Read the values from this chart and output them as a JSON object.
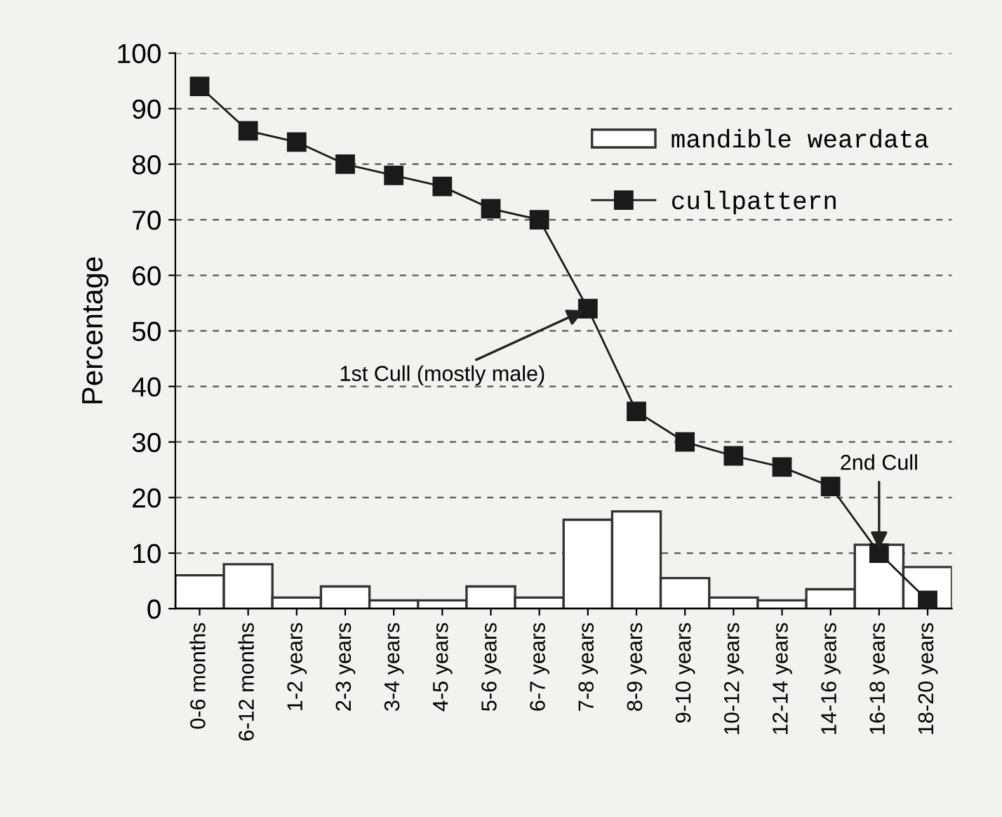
{
  "chart_data": {
    "type": "bar",
    "ylabel": "Percentage",
    "categories": [
      "0-6 months",
      "6-12 months",
      "1-2 years",
      "2-3 years",
      "3-4 years",
      "4-5 years",
      "5-6 years",
      "6-7 years",
      "7-8 years",
      "8-9 years",
      "9-10 years",
      "10-12 years",
      "12-14 years",
      "14-16 years",
      "16-18 years",
      "18-20 years"
    ],
    "series": [
      {
        "name": "mandible weardata",
        "color": "#ffffff",
        "values": [
          6,
          8,
          2,
          4,
          1.5,
          1.5,
          4,
          2,
          16,
          17.5,
          5.5,
          2,
          1.5,
          3.5,
          11.5,
          7.5
        ]
      },
      {
        "name": "cullpattern",
        "type": "line",
        "color": "#1a1a1a",
        "marker": "square",
        "values": [
          94,
          86,
          84,
          80,
          78,
          76,
          72,
          70,
          54,
          35.5,
          30,
          27.5,
          25.5,
          22,
          10,
          1.5
        ]
      }
    ],
    "annotations": [
      {
        "text": "1st Cull (mostly male)",
        "x": "7-8 years",
        "y": 54
      },
      {
        "text": "2nd Cull",
        "x": "16-18 years",
        "y": 10
      }
    ],
    "ylim": [
      0,
      100
    ],
    "yticks": [
      0,
      10,
      20,
      30,
      40,
      50,
      60,
      70,
      80,
      90,
      100
    ],
    "grid": "y",
    "legend": "top right"
  }
}
